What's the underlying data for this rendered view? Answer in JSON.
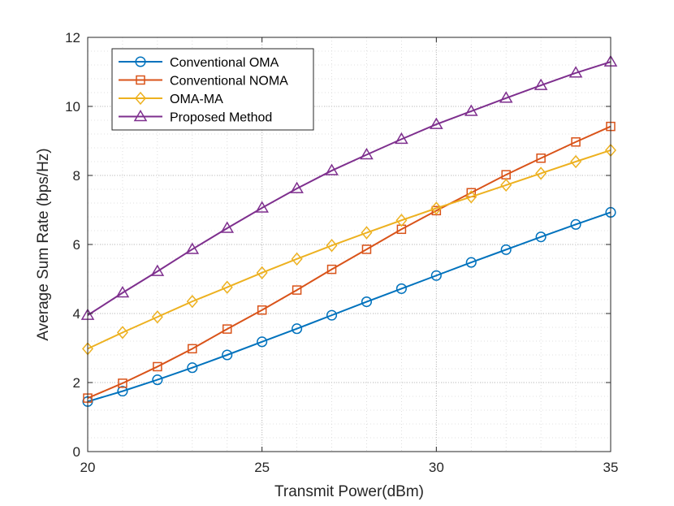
{
  "chart_data": {
    "type": "line",
    "title": "",
    "xlabel": "Transmit Power(dBm)",
    "ylabel": "Average Sum Rate (bps/Hz)",
    "xlim": [
      20,
      35
    ],
    "ylim": [
      0,
      12
    ],
    "xticks": [
      20,
      25,
      30,
      35
    ],
    "yticks": [
      0,
      2,
      4,
      6,
      8,
      10,
      12
    ],
    "grid": true,
    "legend_position": "top-left",
    "x": [
      20,
      21,
      22,
      23,
      24,
      25,
      26,
      27,
      28,
      29,
      30,
      31,
      32,
      33,
      34,
      35
    ],
    "series": [
      {
        "name": "Conventional OMA",
        "color": "#0072BD",
        "marker": "circle",
        "values": [
          1.45,
          1.75,
          2.08,
          2.43,
          2.8,
          3.18,
          3.56,
          3.95,
          4.34,
          4.72,
          5.1,
          5.48,
          5.85,
          6.22,
          6.58,
          6.93
        ]
      },
      {
        "name": "Conventional NOMA",
        "color": "#D95319",
        "marker": "square",
        "values": [
          1.55,
          1.98,
          2.46,
          2.98,
          3.55,
          4.1,
          4.68,
          5.28,
          5.86,
          6.44,
          6.98,
          7.5,
          8.02,
          8.5,
          8.97,
          9.42
        ]
      },
      {
        "name": "OMA-MA",
        "color": "#EDB120",
        "marker": "diamond",
        "values": [
          2.98,
          3.45,
          3.9,
          4.35,
          4.76,
          5.18,
          5.58,
          5.97,
          6.34,
          6.7,
          7.05,
          7.38,
          7.72,
          8.06,
          8.4,
          8.73
        ]
      },
      {
        "name": "Proposed Method",
        "color": "#7E2F8E",
        "marker": "triangle",
        "values": [
          3.95,
          4.6,
          5.22,
          5.86,
          6.47,
          7.06,
          7.62,
          8.14,
          8.6,
          9.05,
          9.48,
          9.86,
          10.24,
          10.61,
          10.97,
          11.29
        ]
      }
    ]
  }
}
